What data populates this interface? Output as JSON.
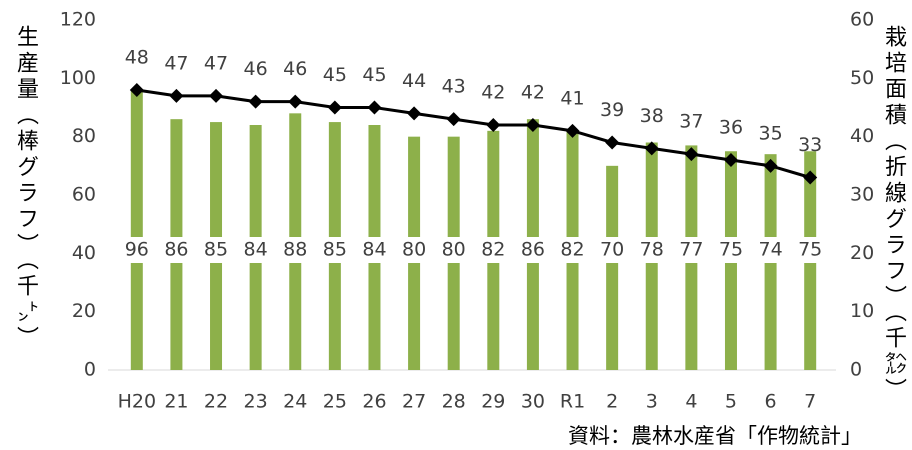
{
  "chart_data": {
    "type": "bar_line",
    "y_label": "生産量（棒グラフ）（千㌧）",
    "y2_label": "栽培面積（折線グラフ）（千㌶）",
    "source": "資料：農林水産省「作物統計」",
    "categories": [
      "H20",
      "21",
      "22",
      "23",
      "24",
      "25",
      "26",
      "27",
      "28",
      "29",
      "30",
      "R1",
      "2",
      "3",
      "4",
      "5",
      "6",
      "7"
    ],
    "series": [
      {
        "name": "生産量",
        "type": "bar",
        "color": "#8db04a",
        "values": [
          96,
          86,
          85,
          84,
          88,
          85,
          84,
          80,
          80,
          82,
          86,
          82,
          70,
          78,
          77,
          75,
          74,
          75
        ]
      },
      {
        "name": "栽培面積",
        "type": "line",
        "axis": "y2",
        "color": "#000000",
        "values": [
          48,
          47,
          47,
          46,
          46,
          45,
          45,
          44,
          43,
          42,
          42,
          41,
          39,
          38,
          37,
          36,
          35,
          33
        ]
      }
    ],
    "ylim": [
      0,
      120
    ],
    "yticks": [
      0,
      20,
      40,
      60,
      80,
      100,
      120
    ],
    "y2lim": [
      0,
      60
    ],
    "y2ticks": [
      0,
      10,
      20,
      30,
      40,
      50,
      60
    ],
    "grid": false
  }
}
